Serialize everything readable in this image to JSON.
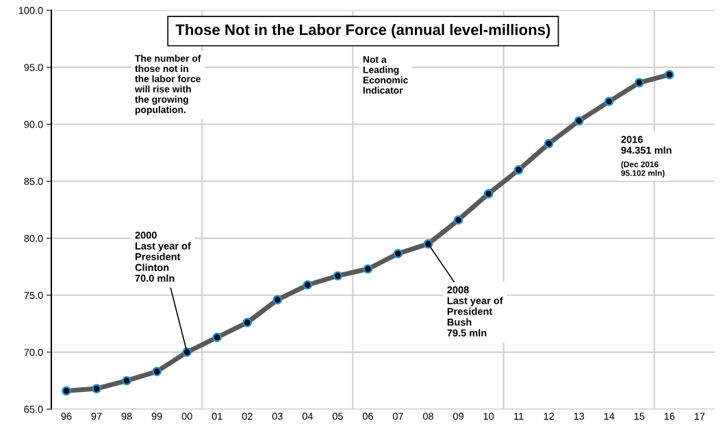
{
  "chart_data": {
    "type": "line",
    "title": "Those Not in the Labor Force (annual level-millions)",
    "categories": [
      "96",
      "97",
      "98",
      "99",
      "00",
      "01",
      "02",
      "03",
      "04",
      "05",
      "06",
      "07",
      "08",
      "09",
      "10",
      "11",
      "12",
      "13",
      "14",
      "15",
      "16",
      "17"
    ],
    "series": [
      {
        "color": "#595959",
        "values": [
          66.6,
          66.8,
          67.5,
          68.3,
          70.0,
          71.3,
          72.6,
          74.6,
          75.9,
          76.7,
          77.3,
          78.65,
          79.5,
          81.6,
          83.9,
          86.0,
          88.3,
          90.3,
          92.0,
          93.65,
          94.35,
          null
        ]
      }
    ],
    "ylim": [
      65,
      100
    ],
    "yticks": [
      {
        "value": 65,
        "label": "65.0"
      },
      {
        "value": 70,
        "label": "70.0"
      },
      {
        "value": 75,
        "label": "75.0"
      },
      {
        "value": 80,
        "label": "80.0"
      },
      {
        "value": 85,
        "label": "85.0"
      },
      {
        "value": 90,
        "label": "90.0"
      },
      {
        "value": 95,
        "label": "95.0"
      },
      {
        "value": 100,
        "label": "100.0"
      }
    ],
    "grid": true,
    "marker": "circle",
    "line_style": "solid",
    "annotations": [
      "The number of\nthose not in\nthe labor force\nwill rise with\nthe growing\npopulation.",
      "Not a\nLeading\nEconomic\nIndicator",
      {
        "text": "2000\nLast year of\nPresident\nClinton\n70.0 mln",
        "x": "00",
        "y": 70.0
      },
      {
        "text": "2008\nLast year of\nPresident\nBush\n79.5 mln",
        "x": "08",
        "y": 79.5
      },
      "2016\n94.351 mln",
      "(Dec 2016\n95.102 mln)"
    ]
  }
}
